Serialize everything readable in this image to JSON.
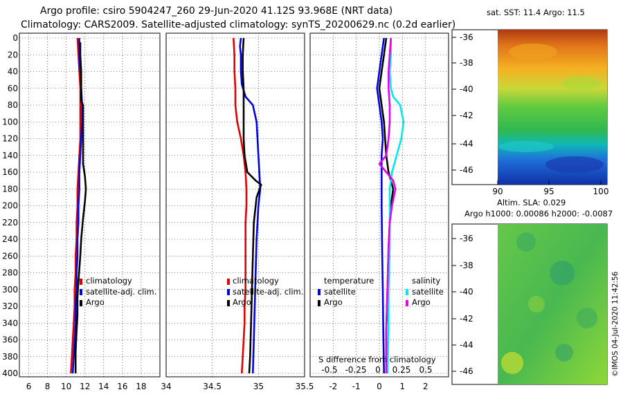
{
  "header": {
    "line1": "Argo profile: csiro 5904247_260 29-Jun-2020 41.12S 93.968E (NRT data)",
    "line2": "Climatology: CARS2009. Satellite-adjusted climatology: synTS_20200629.nc (0.2d earlier)"
  },
  "colors": {
    "climatology": "#e00000",
    "satellite": "#0000e0",
    "argo": "#000000",
    "salinity_satellite": "#00e8f0",
    "salinity_argo": "#e800e8"
  },
  "depth_axis": {
    "range": [
      0,
      400
    ],
    "ticks": [
      "0",
      "20",
      "40",
      "60",
      "80",
      "100",
      "120",
      "140",
      "160",
      "180",
      "200",
      "220",
      "240",
      "260",
      "280",
      "300",
      "320",
      "340",
      "360",
      "380",
      "400"
    ]
  },
  "chart_data": [
    {
      "type": "line",
      "name": "temperature-profile",
      "xlim": [
        5,
        20
      ],
      "ylim": [
        400,
        0
      ],
      "xticks": [
        "6",
        "8",
        "10",
        "12",
        "14",
        "16",
        "18"
      ],
      "legend": [
        "climatology",
        "satellite-adj. clim.",
        "Argo"
      ],
      "series": [
        {
          "name": "climatology",
          "color_key": "climatology",
          "points": [
            [
              11.2,
              0
            ],
            [
              11.3,
              20
            ],
            [
              11.4,
              40
            ],
            [
              11.5,
              60
            ],
            [
              11.5,
              80
            ],
            [
              11.5,
              100
            ],
            [
              11.5,
              120
            ],
            [
              11.4,
              140
            ],
            [
              11.3,
              160
            ],
            [
              11.2,
              180
            ],
            [
              11.2,
              200
            ],
            [
              11.1,
              220
            ],
            [
              11.1,
              240
            ],
            [
              11.0,
              260
            ],
            [
              11.0,
              280
            ],
            [
              10.9,
              300
            ],
            [
              10.9,
              320
            ],
            [
              10.8,
              340
            ],
            [
              10.7,
              360
            ],
            [
              10.6,
              380
            ],
            [
              10.5,
              400
            ]
          ]
        },
        {
          "name": "satellite-adj. clim.",
          "color_key": "satellite",
          "points": [
            [
              11.4,
              0
            ],
            [
              11.4,
              20
            ],
            [
              11.5,
              40
            ],
            [
              11.6,
              60
            ],
            [
              11.7,
              80
            ],
            [
              11.7,
              100
            ],
            [
              11.6,
              120
            ],
            [
              11.5,
              140
            ],
            [
              11.4,
              160
            ],
            [
              11.4,
              180
            ],
            [
              11.3,
              200
            ],
            [
              11.3,
              220
            ],
            [
              11.2,
              240
            ],
            [
              11.2,
              260
            ],
            [
              11.1,
              280
            ],
            [
              11.1,
              300
            ],
            [
              11.0,
              320
            ],
            [
              11.0,
              340
            ],
            [
              10.9,
              360
            ],
            [
              10.8,
              380
            ],
            [
              10.7,
              400
            ]
          ]
        },
        {
          "name": "Argo",
          "color_key": "argo",
          "points": [
            [
              11.5,
              5
            ],
            [
              11.5,
              20
            ],
            [
              11.6,
              40
            ],
            [
              11.6,
              60
            ],
            [
              11.6,
              75
            ],
            [
              11.8,
              80
            ],
            [
              11.8,
              100
            ],
            [
              11.8,
              120
            ],
            [
              11.8,
              150
            ],
            [
              12.0,
              165
            ],
            [
              12.1,
              180
            ],
            [
              12.0,
              195
            ],
            [
              11.8,
              215
            ],
            [
              11.6,
              240
            ],
            [
              11.5,
              260
            ],
            [
              11.3,
              290
            ],
            [
              11.2,
              310
            ],
            [
              11.2,
              330
            ],
            [
              11.1,
              350
            ],
            [
              11.0,
              375
            ],
            [
              11.0,
              400
            ]
          ]
        }
      ]
    },
    {
      "type": "line",
      "name": "salinity-profile",
      "xlim": [
        34.0,
        35.5
      ],
      "ylim": [
        400,
        0
      ],
      "xticks": [
        "34",
        "34.5",
        "35",
        "35.5"
      ],
      "legend": [
        "climatology",
        "satellite-adj. clim.",
        "Argo"
      ],
      "series": [
        {
          "name": "climatology",
          "color_key": "climatology",
          "points": [
            [
              34.73,
              0
            ],
            [
              34.74,
              20
            ],
            [
              34.74,
              40
            ],
            [
              34.75,
              60
            ],
            [
              34.75,
              80
            ],
            [
              34.77,
              100
            ],
            [
              34.81,
              120
            ],
            [
              34.84,
              140
            ],
            [
              34.86,
              160
            ],
            [
              34.87,
              180
            ],
            [
              34.87,
              200
            ],
            [
              34.86,
              220
            ],
            [
              34.86,
              240
            ],
            [
              34.86,
              260
            ],
            [
              34.86,
              280
            ],
            [
              34.86,
              300
            ],
            [
              34.85,
              320
            ],
            [
              34.85,
              340
            ],
            [
              34.84,
              360
            ],
            [
              34.83,
              380
            ],
            [
              34.82,
              400
            ]
          ]
        },
        {
          "name": "satellite-adj. clim.",
          "color_key": "satellite",
          "points": [
            [
              34.81,
              0
            ],
            [
              34.8,
              10
            ],
            [
              34.81,
              20
            ],
            [
              34.81,
              40
            ],
            [
              34.82,
              55
            ],
            [
              34.86,
              70
            ],
            [
              34.94,
              80
            ],
            [
              34.98,
              100
            ],
            [
              35.0,
              140
            ],
            [
              35.02,
              180
            ],
            [
              35.0,
              200
            ],
            [
              34.99,
              220
            ],
            [
              34.98,
              240
            ],
            [
              34.97,
              280
            ],
            [
              34.96,
              320
            ],
            [
              34.95,
              360
            ],
            [
              34.94,
              400
            ]
          ]
        },
        {
          "name": "Argo",
          "color_key": "argo",
          "points": [
            [
              34.84,
              0
            ],
            [
              34.83,
              20
            ],
            [
              34.83,
              40
            ],
            [
              34.84,
              60
            ],
            [
              34.84,
              80
            ],
            [
              34.84,
              100
            ],
            [
              34.84,
              120
            ],
            [
              34.85,
              140
            ],
            [
              34.88,
              160
            ],
            [
              34.97,
              170
            ],
            [
              35.03,
              175
            ],
            [
              34.98,
              190
            ],
            [
              34.95,
              220
            ],
            [
              34.94,
              260
            ],
            [
              34.93,
              300
            ],
            [
              34.92,
              340
            ],
            [
              34.91,
              380
            ],
            [
              34.9,
              400
            ]
          ]
        }
      ]
    },
    {
      "type": "line",
      "name": "difference-from-climatology",
      "xlim": [
        -3,
        3
      ],
      "ylim": [
        400,
        0
      ],
      "xticks": [
        "-2",
        "-1",
        "0",
        "1",
        "2"
      ],
      "secondary_xticks": [
        "-0.5",
        "-0.25",
        "0",
        "0.25",
        "0.5"
      ],
      "xlabel": "S difference from climatology",
      "legend_temperature": {
        "heading": "temperature",
        "entries": [
          "satellite",
          "Argo"
        ]
      },
      "legend_salinity": {
        "heading": "salinity",
        "entries": [
          "satellite",
          "Argo"
        ]
      },
      "series": [
        {
          "name": "temperature satellite",
          "color_key": "satellite",
          "points": [
            [
              0.2,
              0
            ],
            [
              0.1,
              20
            ],
            [
              0,
              40
            ],
            [
              -0.1,
              60
            ],
            [
              0,
              80
            ],
            [
              0.1,
              100
            ],
            [
              0.15,
              120
            ],
            [
              0.1,
              140
            ],
            [
              0.1,
              160
            ],
            [
              0.1,
              200
            ],
            [
              0.12,
              250
            ],
            [
              0.15,
              300
            ],
            [
              0.17,
              350
            ],
            [
              0.2,
              400
            ]
          ]
        },
        {
          "name": "temperature Argo",
          "color_key": "argo",
          "points": [
            [
              0.3,
              0
            ],
            [
              0.2,
              20
            ],
            [
              0.1,
              40
            ],
            [
              0,
              60
            ],
            [
              0.1,
              80
            ],
            [
              0.2,
              100
            ],
            [
              0.25,
              120
            ],
            [
              0.3,
              140
            ],
            [
              0.4,
              160
            ],
            [
              0.6,
              180
            ],
            [
              0.5,
              200
            ],
            [
              0.45,
              220
            ],
            [
              0.4,
              250
            ],
            [
              0.35,
              300
            ],
            [
              0.3,
              350
            ],
            [
              0.3,
              400
            ]
          ]
        },
        {
          "name": "salinity satellite",
          "color_key": "salinity_satellite",
          "points": [
            [
              0.5,
              0
            ],
            [
              0.5,
              20
            ],
            [
              0.45,
              40
            ],
            [
              0.5,
              60
            ],
            [
              0.6,
              70
            ],
            [
              0.9,
              80
            ],
            [
              1.05,
              100
            ],
            [
              0.95,
              120
            ],
            [
              0.75,
              140
            ],
            [
              0.55,
              160
            ],
            [
              0.45,
              180
            ],
            [
              0.45,
              200
            ],
            [
              0.45,
              250
            ],
            [
              0.4,
              300
            ],
            [
              0.4,
              350
            ],
            [
              0.35,
              400
            ]
          ]
        },
        {
          "name": "salinity Argo",
          "color_key": "salinity_argo",
          "points": [
            [
              0.5,
              0
            ],
            [
              0.45,
              20
            ],
            [
              0.4,
              40
            ],
            [
              0.4,
              60
            ],
            [
              0.45,
              80
            ],
            [
              0.45,
              100
            ],
            [
              0.4,
              120
            ],
            [
              0.3,
              140
            ],
            [
              0.0,
              150
            ],
            [
              0.3,
              160
            ],
            [
              0.6,
              170
            ],
            [
              0.7,
              180
            ],
            [
              0.55,
              200
            ],
            [
              0.45,
              220
            ],
            [
              0.4,
              250
            ],
            [
              0.35,
              300
            ],
            [
              0.3,
              350
            ],
            [
              0.3,
              400
            ]
          ]
        }
      ]
    }
  ],
  "maps": {
    "sst": {
      "title": "sat. SST: 11.4 Argo: 11.5",
      "lat_ticks": [
        "-36",
        "-38",
        "-40",
        "-42",
        "-44",
        "-46"
      ],
      "lon_ticks": [
        "90",
        "95",
        "100"
      ]
    },
    "sla": {
      "title_line1": "Altim. SLA: 0.029",
      "title_line2": "Argo h1000: 0.00086 h2000: -0.0087",
      "lat_ticks": [
        "-36",
        "-38",
        "-40",
        "-42",
        "-44",
        "-46"
      ]
    }
  },
  "footer": {
    "credit": "©IMOS 04-Jul-2020 11:42:56"
  }
}
